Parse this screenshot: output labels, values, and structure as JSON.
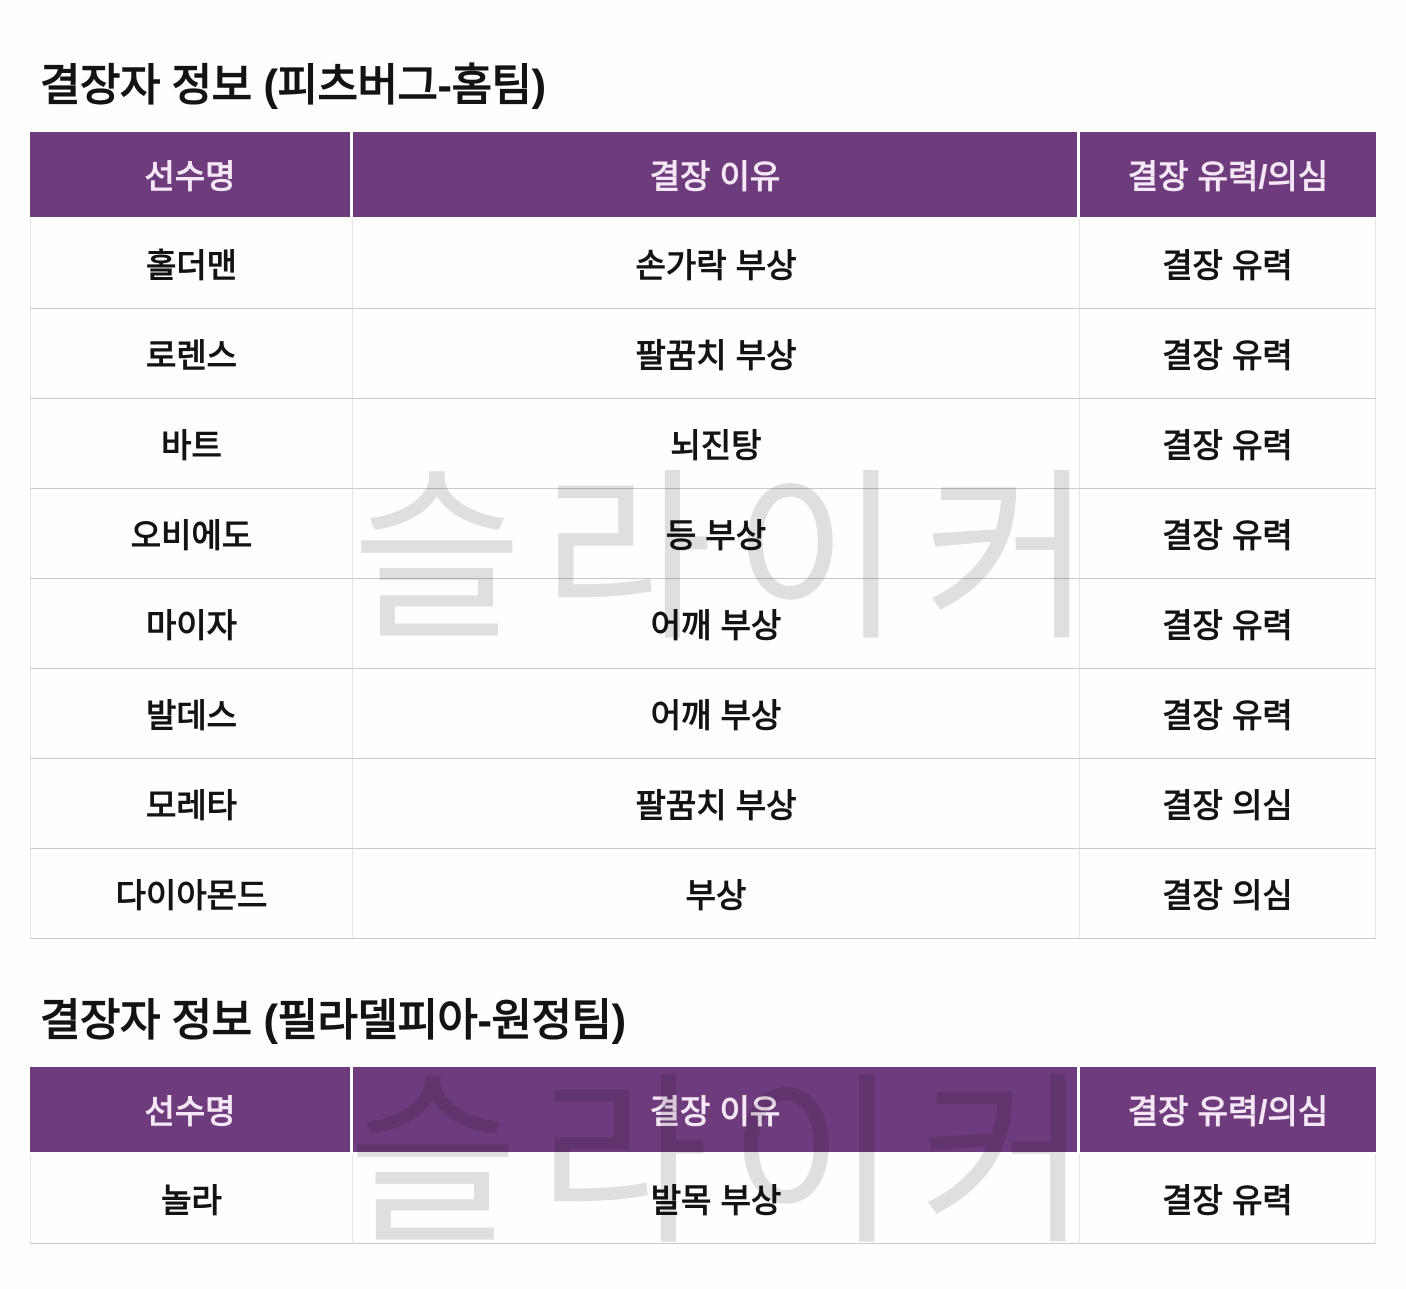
{
  "watermark": {
    "text": "슬라이커",
    "color": "#e0e0e0"
  },
  "colors": {
    "header_bg": "#6e3b7d",
    "header_text": "#f5e7f5",
    "body_text": "#131313",
    "row_border": "#c9c9c9",
    "column_border": "#e4e4e4",
    "page_bg": "#fefefc"
  },
  "tables": [
    {
      "title": "결장자 정보 (피츠버그-홈팀)",
      "columns": [
        "선수명",
        "결장 이유",
        "결장 유력/의심"
      ],
      "rows": [
        [
          "홀더맨",
          "손가락 부상",
          "결장 유력"
        ],
        [
          "로렌스",
          "팔꿈치 부상",
          "결장 유력"
        ],
        [
          "바트",
          "뇌진탕",
          "결장 유력"
        ],
        [
          "오비에도",
          "등 부상",
          "결장 유력"
        ],
        [
          "마이자",
          "어깨 부상",
          "결장 유력"
        ],
        [
          "발데스",
          "어깨 부상",
          "결장 유력"
        ],
        [
          "모레타",
          "팔꿈치 부상",
          "결장 의심"
        ],
        [
          "다이아몬드",
          "부상",
          "결장 의심"
        ]
      ]
    },
    {
      "title": "결장자 정보 (필라델피아-원정팀)",
      "columns": [
        "선수명",
        "결장 이유",
        "결장 유력/의심"
      ],
      "rows": [
        [
          "놀라",
          "발목 부상",
          "결장 유력"
        ]
      ]
    }
  ]
}
